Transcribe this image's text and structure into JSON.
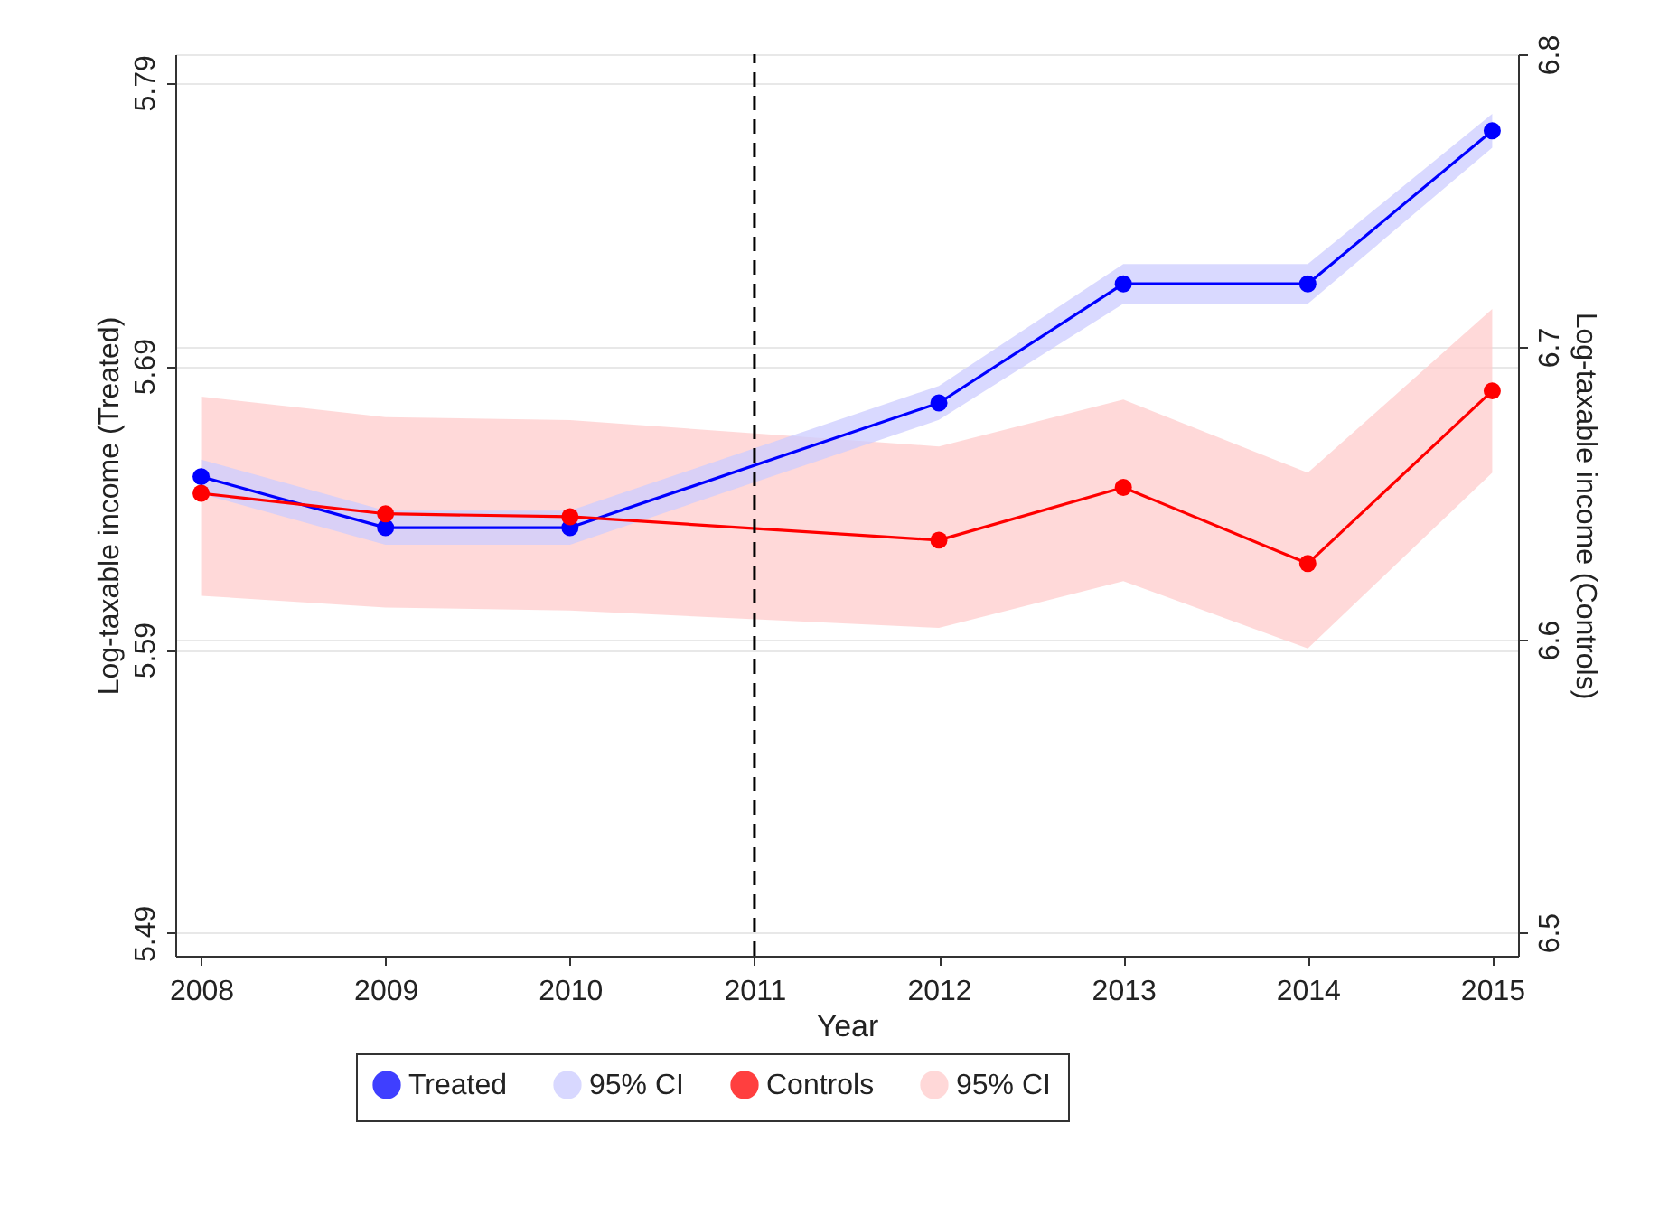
{
  "chart_data": {
    "type": "line",
    "xlabel": "Year",
    "ylabel": "Log-taxable income (Treated)",
    "y2label": "Log-taxable income (Controls)",
    "x": [
      2008,
      2009,
      2010,
      2012,
      2013,
      2014,
      2015
    ],
    "series": [
      {
        "name": "Treated",
        "type": "line",
        "color": "#0000ff",
        "values": [
          5.651,
          5.633,
          5.633,
          5.677,
          5.719,
          5.719,
          5.773
        ],
        "lower": [
          5.645,
          5.627,
          5.627,
          5.671,
          5.712,
          5.712,
          5.767
        ],
        "upper": [
          5.657,
          5.639,
          5.639,
          5.683,
          5.726,
          5.726,
          5.779
        ]
      },
      {
        "name": "Controls",
        "type": "line",
        "color": "#ff0000",
        "axis": "y2",
        "values": [
          6.65,
          6.643,
          6.642,
          6.634,
          6.652,
          6.626,
          6.685
        ],
        "lower": [
          6.615,
          6.611,
          6.61,
          6.604,
          6.62,
          6.597,
          6.657
        ],
        "upper": [
          6.683,
          6.676,
          6.675,
          6.666,
          6.682,
          6.657,
          6.713
        ]
      }
    ],
    "annotations": [
      "95% CI",
      "95% CI"
    ],
    "xlim": [
      2007.86,
      2015.14
    ],
    "xticks": [
      2008,
      2009,
      2010,
      2011,
      2012,
      2013,
      2014,
      2015
    ],
    "ylim": [
      5.482,
      5.8
    ],
    "yticks": [
      5.49,
      5.59,
      5.69,
      5.79
    ],
    "y2lim": [
      6.492,
      6.8
    ],
    "y2ticks": [
      {
        "value": 6.5,
        "label": "6.5"
      },
      {
        "value": 6.6,
        "label": "6.6"
      },
      {
        "value": 6.7,
        "label": "6.7"
      },
      {
        "value": 6.8,
        "label": "6.8"
      }
    ],
    "ref_lines": [
      {
        "axis": "x",
        "value": 2011,
        "color": "#000000",
        "line_style": "dashed"
      }
    ],
    "grid": "y",
    "legend": "bottom",
    "marker": "circle"
  }
}
